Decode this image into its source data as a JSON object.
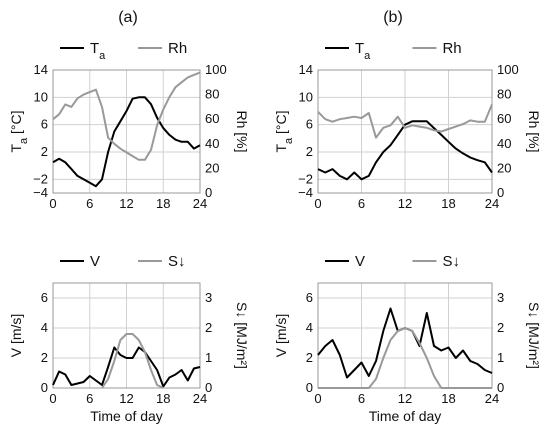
{
  "panel_labels": [
    "(a)",
    "(b)"
  ],
  "x_axis_label": "Time of day",
  "chart_data": [
    {
      "type": "line",
      "panel": "(a)",
      "title": "",
      "xlabel": "",
      "ylabel": "T_a [°C]",
      "y2label": "Rh [%]",
      "xlim": [
        0,
        24
      ],
      "ylim": [
        -4,
        14
      ],
      "y2lim": [
        0,
        100
      ],
      "xticks": [
        0,
        6,
        12,
        18,
        24
      ],
      "yticks": [
        -4,
        -2,
        2,
        6,
        10,
        14
      ],
      "y2ticks": [
        0,
        20,
        40,
        60,
        80,
        100
      ],
      "grid": true,
      "legend": "top",
      "series": [
        {
          "name": "T_a",
          "axis": "left",
          "color": "#000000",
          "x": [
            0,
            1,
            2,
            3,
            4,
            5,
            6,
            7,
            8,
            9,
            10,
            11,
            12,
            13,
            14,
            15,
            16,
            17,
            18,
            19,
            20,
            21,
            22,
            23,
            24
          ],
          "values": [
            0.5,
            1.0,
            0.5,
            -0.5,
            -1.5,
            -2.0,
            -2.5,
            -3.0,
            -2.0,
            2.0,
            5.0,
            6.5,
            8.0,
            9.8,
            10.0,
            10.0,
            9.0,
            7.0,
            5.5,
            4.5,
            3.8,
            3.5,
            3.5,
            2.5,
            3.0
          ]
        },
        {
          "name": "Rh",
          "axis": "right",
          "color": "#999999",
          "x": [
            0,
            1,
            2,
            3,
            4,
            5,
            6,
            7,
            8,
            9,
            10,
            11,
            12,
            13,
            14,
            15,
            16,
            17,
            18,
            19,
            20,
            21,
            22,
            23,
            24
          ],
          "values": [
            60,
            64,
            72,
            70,
            77,
            80,
            82,
            84,
            70,
            45,
            40,
            36,
            33,
            30,
            27,
            27,
            35,
            55,
            68,
            78,
            86,
            90,
            94,
            96,
            98
          ]
        }
      ]
    },
    {
      "type": "line",
      "panel": "(b)",
      "title": "",
      "xlabel": "",
      "ylabel": "T_a [°C]",
      "y2label": "Rh [%]",
      "xlim": [
        0,
        24
      ],
      "ylim": [
        -4,
        14
      ],
      "y2lim": [
        0,
        100
      ],
      "xticks": [
        0,
        6,
        12,
        18,
        24
      ],
      "yticks": [
        -4,
        -2,
        2,
        6,
        10,
        14
      ],
      "y2ticks": [
        0,
        20,
        40,
        60,
        80,
        100
      ],
      "grid": true,
      "legend": "top",
      "series": [
        {
          "name": "T_a",
          "axis": "left",
          "color": "#000000",
          "x": [
            0,
            1,
            2,
            3,
            4,
            5,
            6,
            7,
            8,
            9,
            10,
            11,
            12,
            13,
            14,
            15,
            16,
            17,
            18,
            19,
            20,
            21,
            22,
            23,
            24
          ],
          "values": [
            -0.5,
            -1.0,
            -0.5,
            -1.5,
            -2.0,
            -1.0,
            -2.0,
            -1.5,
            0.5,
            2.0,
            3.0,
            4.5,
            6.0,
            6.5,
            6.5,
            6.5,
            5.5,
            4.5,
            3.5,
            2.5,
            1.8,
            1.2,
            0.8,
            0.5,
            -1.0
          ]
        },
        {
          "name": "Rh",
          "axis": "right",
          "color": "#999999",
          "x": [
            0,
            1,
            2,
            3,
            4,
            5,
            6,
            7,
            8,
            9,
            10,
            11,
            12,
            13,
            14,
            15,
            16,
            17,
            18,
            19,
            20,
            21,
            22,
            23,
            24
          ],
          "values": [
            66,
            60,
            58,
            60,
            61,
            62,
            61,
            65,
            45,
            53,
            55,
            62,
            53,
            55,
            54,
            53,
            51,
            50,
            52,
            54,
            56,
            59,
            58,
            58,
            72
          ]
        }
      ]
    },
    {
      "type": "line",
      "panel": "(a)",
      "title": "",
      "xlabel": "Time of day",
      "ylabel": "V [m/s]",
      "y2label": "S↓ [MJ/m²]",
      "xlim": [
        0,
        24
      ],
      "ylim": [
        0,
        7
      ],
      "y2lim": [
        0,
        3.5
      ],
      "xticks": [
        0,
        6,
        12,
        18,
        24
      ],
      "yticks": [
        0,
        2,
        4,
        6
      ],
      "y2ticks": [
        0,
        1,
        2,
        3
      ],
      "grid": true,
      "legend": "top",
      "series": [
        {
          "name": "V",
          "axis": "left",
          "color": "#000000",
          "x": [
            0,
            1,
            2,
            3,
            4,
            5,
            6,
            7,
            8,
            9,
            10,
            11,
            12,
            13,
            14,
            15,
            16,
            17,
            18,
            19,
            20,
            21,
            22,
            23,
            24
          ],
          "values": [
            0.2,
            1.1,
            0.9,
            0.2,
            0.3,
            0.4,
            0.8,
            0.5,
            0.2,
            1.4,
            2.7,
            2.2,
            2.0,
            2.0,
            2.7,
            2.4,
            1.8,
            1.2,
            0.1,
            0.7,
            0.9,
            1.2,
            0.5,
            1.3,
            1.4
          ]
        },
        {
          "name": "S↓",
          "axis": "right",
          "color": "#999999",
          "x": [
            8,
            9,
            10,
            11,
            12,
            13,
            14,
            15,
            16,
            17,
            18
          ],
          "values": [
            0.0,
            0.3,
            0.9,
            1.6,
            1.8,
            1.8,
            1.6,
            1.2,
            0.6,
            0.1,
            0.0
          ]
        }
      ]
    },
    {
      "type": "line",
      "panel": "(b)",
      "title": "",
      "xlabel": "Time of day",
      "ylabel": "V [m/s]",
      "y2label": "S↓ [MJ/m²]",
      "xlim": [
        0,
        24
      ],
      "ylim": [
        0,
        7
      ],
      "y2lim": [
        0,
        3.5
      ],
      "xticks": [
        0,
        6,
        12,
        18,
        24
      ],
      "yticks": [
        0,
        2,
        4,
        6
      ],
      "y2ticks": [
        0,
        1,
        2,
        3
      ],
      "grid": true,
      "legend": "top",
      "series": [
        {
          "name": "V",
          "axis": "left",
          "color": "#000000",
          "x": [
            0,
            1,
            2,
            3,
            4,
            5,
            6,
            7,
            8,
            9,
            10,
            11,
            12,
            13,
            14,
            15,
            16,
            17,
            18,
            19,
            20,
            21,
            22,
            23,
            24
          ],
          "values": [
            2.2,
            2.8,
            3.2,
            2.2,
            0.7,
            1.2,
            1.7,
            0.8,
            1.8,
            3.8,
            5.3,
            3.8,
            4.0,
            3.8,
            2.8,
            5.0,
            2.8,
            2.5,
            2.7,
            2.0,
            2.5,
            1.8,
            1.6,
            1.2,
            1.0
          ]
        },
        {
          "name": "S↓",
          "axis": "right",
          "color": "#999999",
          "x": [
            0,
            1,
            2,
            3,
            4,
            5,
            6,
            7,
            8,
            9,
            10,
            11,
            12,
            13,
            14,
            15,
            16,
            17,
            18,
            19,
            20,
            21,
            22,
            23,
            24
          ],
          "values": [
            0,
            0,
            0,
            0,
            0,
            0,
            0,
            0,
            0.3,
            1.0,
            1.6,
            1.9,
            2.0,
            1.9,
            1.5,
            1.0,
            0.4,
            0.0,
            0,
            0,
            0,
            0,
            0,
            0,
            0
          ]
        }
      ]
    }
  ]
}
